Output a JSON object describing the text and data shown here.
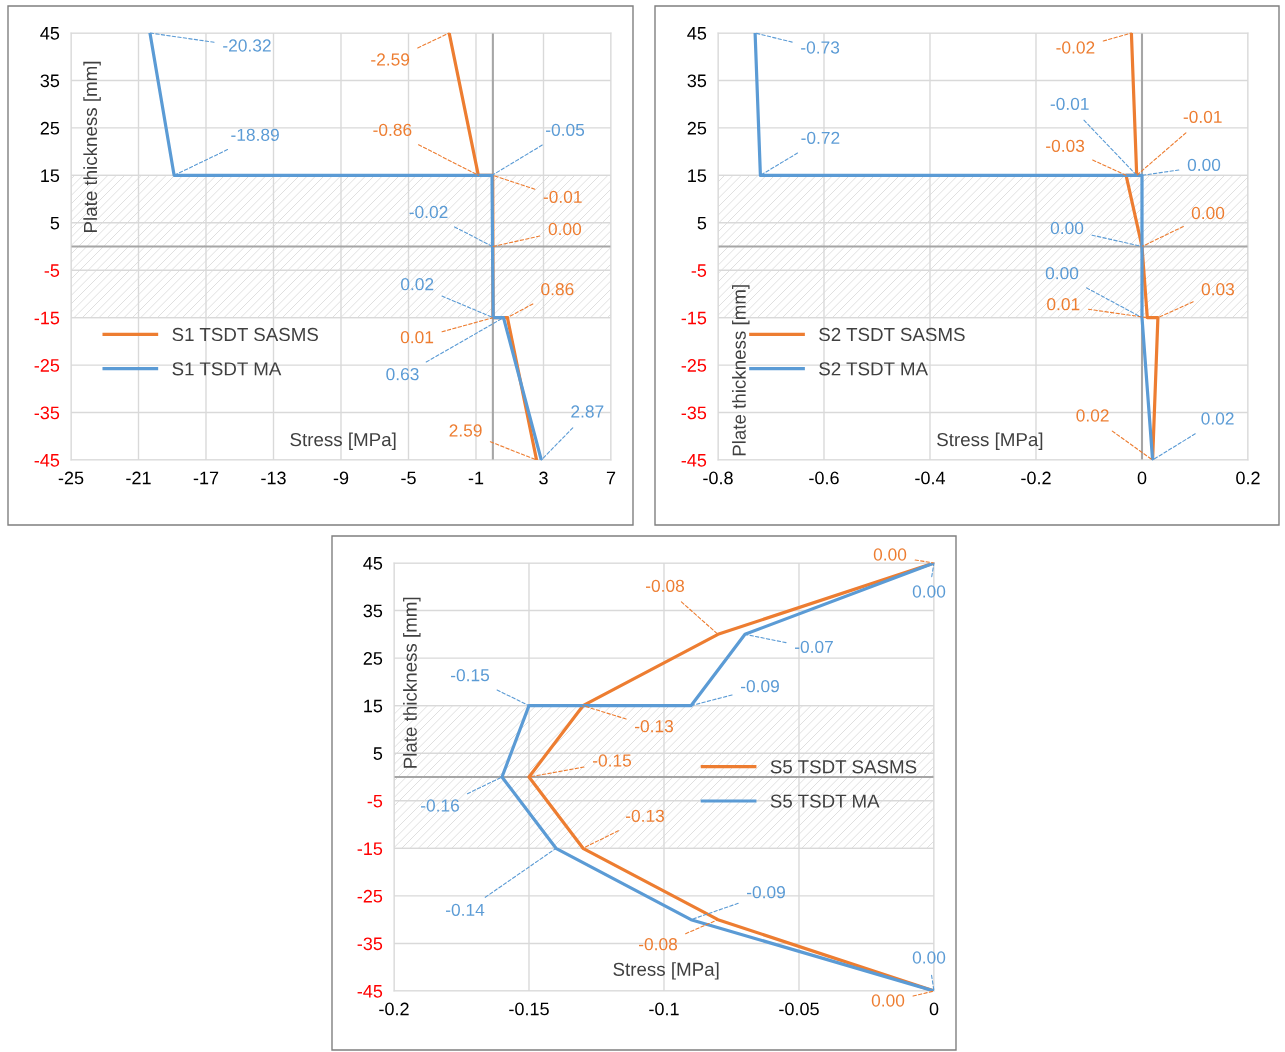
{
  "chart_data": [
    {
      "type": "line",
      "xlabel": "Stress [MPa]",
      "ylabel": "Plate thickness [mm]",
      "xlim": [
        -25,
        7
      ],
      "xticks": [
        -25,
        -21,
        -17,
        -13,
        -9,
        -5,
        -1,
        3,
        7
      ],
      "ylim": [
        -45,
        45
      ],
      "yticks": [
        45,
        35,
        25,
        15,
        5,
        -5,
        -15,
        -25,
        -35,
        -45
      ],
      "grid": true,
      "legend": "left",
      "marker": "none",
      "line_style": "solid",
      "bands": [
        {
          "axis": "y",
          "from": 0,
          "to": 15
        },
        {
          "axis": "y",
          "from": -15,
          "to": 0
        }
      ],
      "ref_lines": [
        {
          "axis": "x",
          "value": 0
        },
        {
          "axis": "y",
          "value": 0
        }
      ],
      "series": [
        {
          "name": "S1 TSDT SASMS",
          "color": "#ed7d31",
          "x": [
            -2.59,
            -0.86,
            -0.01,
            0,
            0.01,
            0.86,
            2.59
          ],
          "values": [
            45,
            15,
            15,
            0,
            -15,
            -15,
            -45
          ]
        },
        {
          "name": "S1 TSDT MA",
          "color": "#5b9bd5",
          "x": [
            -20.32,
            -18.89,
            -0.05,
            -0.02,
            0.02,
            0.63,
            2.87
          ],
          "values": [
            45,
            15,
            15,
            0,
            -15,
            -15,
            -45
          ]
        }
      ],
      "annotations": [
        {
          "text": "-2.59",
          "x": -2.59,
          "y": 45
        },
        {
          "text": "-0.86",
          "x": -0.86,
          "y": 15
        },
        {
          "text": "-0.01",
          "x": -0.01,
          "y": 15
        },
        {
          "text": "0.00",
          "x": 0,
          "y": 0
        },
        {
          "text": "0.01",
          "x": 0.01,
          "y": -15
        },
        {
          "text": "0.86",
          "x": 0.86,
          "y": -15
        },
        {
          "text": "2.59",
          "x": 2.59,
          "y": -45
        },
        {
          "text": "-20.32",
          "x": -20.32,
          "y": 45
        },
        {
          "text": "-18.89",
          "x": -18.89,
          "y": 15
        },
        {
          "text": "-0.05",
          "x": -0.05,
          "y": 15
        },
        {
          "text": "-0.02",
          "x": -0.02,
          "y": 0
        },
        {
          "text": "0.02",
          "x": 0.02,
          "y": -15
        },
        {
          "text": "0.63",
          "x": 0.63,
          "y": -15
        },
        {
          "text": "2.87",
          "x": 2.87,
          "y": -45
        }
      ]
    },
    {
      "type": "line",
      "xlabel": "Stress [MPa]",
      "ylabel": "Plate thickness [mm]",
      "xlim": [
        -0.8,
        0.2
      ],
      "xticks": [
        -0.8,
        -0.6,
        -0.4,
        -0.2,
        0,
        0.2
      ],
      "ylim": [
        -45,
        45
      ],
      "yticks": [
        45,
        35,
        25,
        15,
        5,
        -5,
        -15,
        -25,
        -35,
        -45
      ],
      "grid": true,
      "legend": "left",
      "marker": "none",
      "line_style": "solid",
      "bands": [
        {
          "axis": "y",
          "from": 0,
          "to": 15
        },
        {
          "axis": "y",
          "from": -15,
          "to": 0
        }
      ],
      "ref_lines": [
        {
          "axis": "x",
          "value": 0
        },
        {
          "axis": "y",
          "value": 0
        }
      ],
      "series": [
        {
          "name": "S2 TSDT SASMS",
          "color": "#ed7d31",
          "x": [
            -0.02,
            -0.01,
            -0.03,
            0,
            0.01,
            0.03,
            0.02
          ],
          "values": [
            45,
            15,
            15,
            0,
            -15,
            -15,
            -45
          ]
        },
        {
          "name": "S2 TSDT MA",
          "color": "#5b9bd5",
          "x": [
            -0.73,
            -0.72,
            -0.01,
            0,
            0,
            0,
            0.02
          ],
          "values": [
            45,
            15,
            15,
            15,
            0,
            -15,
            -45
          ]
        }
      ],
      "annotations": [
        {
          "text": "-0.02",
          "x": -0.02,
          "y": 45
        },
        {
          "text": "-0.01",
          "x": -0.01,
          "y": 15
        },
        {
          "text": "-0.03",
          "x": -0.03,
          "y": 15
        },
        {
          "text": "0.00",
          "x": 0,
          "y": 0
        },
        {
          "text": "0.01",
          "x": 0.01,
          "y": -15
        },
        {
          "text": "0.03",
          "x": 0.03,
          "y": -15
        },
        {
          "text": "0.02",
          "x": 0.02,
          "y": -45
        },
        {
          "text": "-0.73",
          "x": -0.73,
          "y": 45
        },
        {
          "text": "-0.72",
          "x": -0.72,
          "y": 15
        },
        {
          "text": "-0.01",
          "x": -0.01,
          "y": 15
        },
        {
          "text": "0.00",
          "x": 0,
          "y": 15
        },
        {
          "text": "0.00",
          "x": 0,
          "y": 0
        },
        {
          "text": "0.00",
          "x": 0,
          "y": -15
        },
        {
          "text": "0.02",
          "x": 0.02,
          "y": -45
        }
      ]
    },
    {
      "type": "line",
      "xlabel": "Stress [MPa]",
      "ylabel": "Plate thickness [mm]",
      "xlim": [
        -0.2,
        0
      ],
      "xticks": [
        -0.2,
        -0.15,
        -0.1,
        -0.05,
        0
      ],
      "ylim": [
        -45,
        45
      ],
      "yticks": [
        45,
        35,
        25,
        15,
        5,
        -5,
        -15,
        -25,
        -35,
        -45
      ],
      "grid": true,
      "legend": "right",
      "marker": "none",
      "line_style": "solid",
      "bands": [
        {
          "axis": "y",
          "from": 0,
          "to": 15
        },
        {
          "axis": "y",
          "from": -15,
          "to": 0
        }
      ],
      "ref_lines": [
        {
          "axis": "y",
          "value": 0
        }
      ],
      "series": [
        {
          "name": "S5 TSDT SASMS",
          "color": "#ed7d31",
          "x": [
            0,
            -0.08,
            -0.13,
            -0.15,
            -0.13,
            -0.08,
            0
          ],
          "values": [
            45,
            30,
            15,
            0,
            -15,
            -30,
            -45
          ]
        },
        {
          "name": "S5 TSDT MA",
          "color": "#5b9bd5",
          "x": [
            0,
            -0.07,
            -0.09,
            -0.15,
            -0.16,
            -0.14,
            -0.09,
            0
          ],
          "values": [
            45,
            30,
            15,
            15,
            0,
            -15,
            -30,
            -45
          ]
        }
      ],
      "annotations": [
        {
          "text": "0.00",
          "x": 0,
          "y": 45
        },
        {
          "text": "-0.08",
          "x": -0.08,
          "y": 30
        },
        {
          "text": "-0.13",
          "x": -0.13,
          "y": 15
        },
        {
          "text": "-0.15",
          "x": -0.15,
          "y": 0
        },
        {
          "text": "-0.13",
          "x": -0.13,
          "y": -15
        },
        {
          "text": "-0.08",
          "x": -0.08,
          "y": -30
        },
        {
          "text": "0.00",
          "x": 0,
          "y": -45
        },
        {
          "text": "0.00",
          "x": 0,
          "y": 45
        },
        {
          "text": "-0.07",
          "x": -0.07,
          "y": 30
        },
        {
          "text": "-0.09",
          "x": -0.09,
          "y": 15
        },
        {
          "text": "-0.15",
          "x": -0.15,
          "y": 15
        },
        {
          "text": "-0.16",
          "x": -0.16,
          "y": 0
        },
        {
          "text": "-0.14",
          "x": -0.14,
          "y": -15
        },
        {
          "text": "-0.09",
          "x": -0.09,
          "y": -30
        },
        {
          "text": "0.00",
          "x": 0,
          "y": -45
        }
      ]
    }
  ]
}
